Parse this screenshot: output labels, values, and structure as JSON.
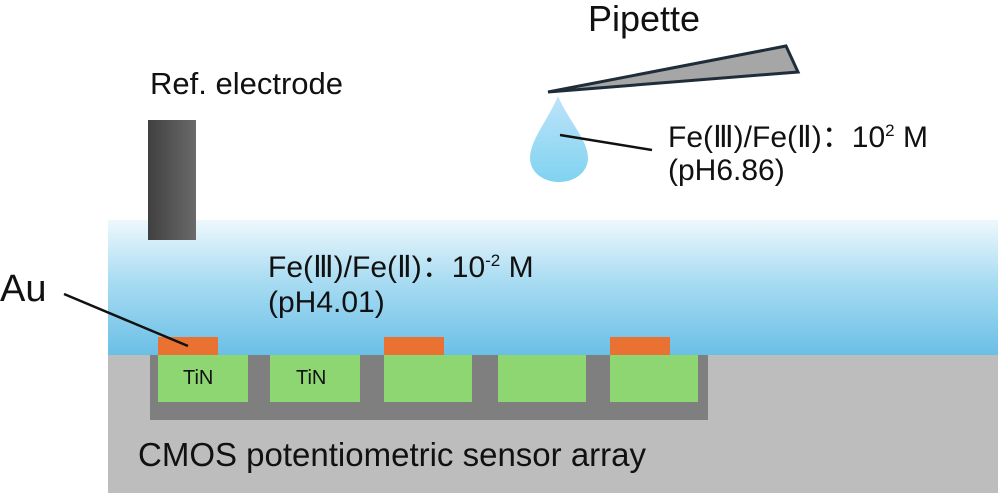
{
  "labels": {
    "pipette": "Pipette",
    "ref_electrode": "Ref. electrode",
    "drop_conc_prefix": "Fe(Ⅲ)/Fe(Ⅱ)：10",
    "drop_conc_exp": "2",
    "drop_conc_unit": " M",
    "drop_ph": "(pH6.86)",
    "solution_conc_prefix": "Fe(Ⅲ)/Fe(Ⅱ)：10",
    "solution_conc_exp": "-2",
    "solution_conc_unit": " M",
    "solution_ph": "(pH4.01)",
    "au": "Au",
    "tin_1": "TiN",
    "tin_2": "TiN",
    "substrate": "CMOS potentiometric sensor array"
  },
  "colors": {
    "solution": "#6bbfe6",
    "tin": "#8dd672",
    "au": "#e97132",
    "substrate": "#bdbdbd",
    "well": "#7f7f7f"
  }
}
